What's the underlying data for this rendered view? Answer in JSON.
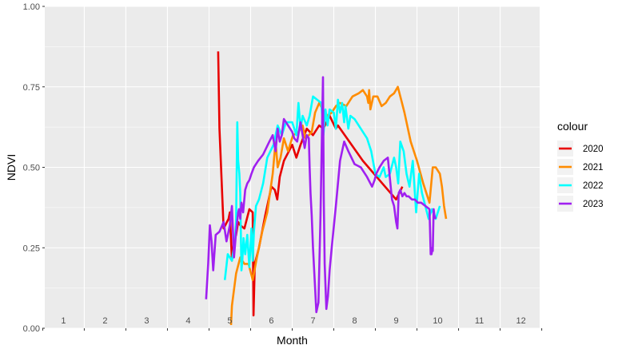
{
  "chart_data": {
    "type": "line",
    "title": "",
    "xlabel": "Month",
    "ylabel": "NDVI",
    "xlim": [
      0.55,
      12.45
    ],
    "ylim": [
      0,
      1
    ],
    "x_tick_labels": [
      "1",
      "2",
      "3",
      "4",
      "5",
      "6",
      "7",
      "8",
      "9",
      "10",
      "11",
      "12"
    ],
    "y_ticks": [
      0,
      0.25,
      0.5,
      0.75,
      1
    ],
    "y_tick_labels": [
      "0.00",
      "0.25",
      "0.50",
      "0.75",
      "1.00"
    ],
    "grid": true,
    "legend": {
      "title": "colour",
      "placement": "right"
    },
    "series": [
      {
        "name": "2020",
        "color": "#e80000",
        "x": [
          4.72,
          4.75,
          4.85,
          4.97,
          5.0,
          5.05,
          5.1,
          5.15,
          5.2,
          5.25,
          5.35,
          5.47,
          5.55,
          5.57,
          5.6,
          5.7,
          5.85,
          6.0,
          6.08,
          6.14,
          6.2,
          6.3,
          6.5,
          6.6,
          6.7,
          6.85,
          7.0,
          7.15,
          7.25,
          7.4,
          7.55,
          7.6,
          8.2,
          9.0,
          9.15
        ],
        "y": [
          0.86,
          0.62,
          0.31,
          0.34,
          0.36,
          0.21,
          0.27,
          0.29,
          0.33,
          0.32,
          0.31,
          0.37,
          0.36,
          0.04,
          0.2,
          0.25,
          0.35,
          0.44,
          0.43,
          0.4,
          0.47,
          0.52,
          0.57,
          0.53,
          0.57,
          0.62,
          0.6,
          0.63,
          0.62,
          0.66,
          0.62,
          0.63,
          0.52,
          0.4,
          0.44
        ]
      },
      {
        "name": "2021",
        "color": "#ff8c00",
        "x": [
          5.03,
          5.05,
          5.15,
          5.25,
          5.35,
          5.45,
          5.55,
          5.65,
          5.78,
          5.9,
          6.03,
          6.1,
          6.15,
          6.22,
          6.3,
          6.4,
          6.52,
          6.65,
          6.75,
          6.82,
          6.9,
          6.97,
          7.05,
          7.15,
          7.23,
          7.35,
          7.45,
          7.55,
          7.65,
          7.8,
          7.95,
          8.1,
          8.2,
          8.3,
          8.33,
          8.35,
          8.38,
          8.45,
          8.55,
          8.65,
          8.75,
          8.85,
          8.95,
          9.04,
          9.12,
          9.2,
          9.35,
          9.5,
          9.65,
          9.8,
          9.88,
          9.95,
          10.05,
          10.1,
          10.15,
          10.2
        ],
        "y": [
          0.01,
          0.07,
          0.17,
          0.22,
          0.2,
          0.2,
          0.15,
          0.22,
          0.3,
          0.36,
          0.48,
          0.58,
          0.5,
          0.53,
          0.59,
          0.55,
          0.6,
          0.61,
          0.63,
          0.59,
          0.6,
          0.61,
          0.67,
          0.7,
          0.68,
          0.66,
          0.67,
          0.69,
          0.7,
          0.69,
          0.72,
          0.73,
          0.74,
          0.72,
          0.7,
          0.74,
          0.68,
          0.72,
          0.72,
          0.69,
          0.7,
          0.72,
          0.73,
          0.75,
          0.71,
          0.67,
          0.58,
          0.52,
          0.45,
          0.39,
          0.5,
          0.5,
          0.48,
          0.44,
          0.38,
          0.34
        ]
      },
      {
        "name": "2022",
        "color": "#00ffff",
        "x": [
          4.88,
          4.95,
          5.05,
          5.12,
          5.15,
          5.18,
          5.2,
          5.23,
          5.25,
          5.28,
          5.3,
          5.33,
          5.37,
          5.42,
          5.47,
          5.52,
          5.55,
          5.58,
          5.63,
          5.7,
          5.8,
          5.9,
          6.05,
          6.15,
          6.25,
          6.35,
          6.5,
          6.6,
          6.65,
          6.7,
          6.75,
          6.85,
          6.92,
          7.0,
          7.1,
          7.2,
          7.25,
          7.3,
          7.35,
          7.4,
          7.5,
          7.55,
          7.6,
          7.65,
          7.7,
          7.75,
          7.78,
          7.85,
          7.9,
          8.0,
          8.1,
          8.2,
          8.3,
          8.4,
          8.5,
          8.6,
          8.7,
          8.75,
          8.85,
          8.95,
          9.0,
          9.05,
          9.1,
          9.18,
          9.25,
          9.32,
          9.4,
          9.48,
          9.55,
          9.62,
          9.7,
          9.78,
          9.86,
          9.95,
          10.05
        ],
        "y": [
          0.15,
          0.23,
          0.21,
          0.27,
          0.33,
          0.64,
          0.52,
          0.48,
          0.42,
          0.18,
          0.21,
          0.28,
          0.23,
          0.29,
          0.19,
          0.31,
          0.21,
          0.3,
          0.38,
          0.4,
          0.45,
          0.53,
          0.57,
          0.63,
          0.6,
          0.64,
          0.64,
          0.6,
          0.7,
          0.62,
          0.66,
          0.63,
          0.66,
          0.72,
          0.71,
          0.7,
          0.6,
          0.68,
          0.63,
          0.68,
          0.67,
          0.62,
          0.71,
          0.67,
          0.7,
          0.64,
          0.69,
          0.62,
          0.66,
          0.65,
          0.63,
          0.61,
          0.59,
          0.55,
          0.48,
          0.47,
          0.5,
          0.47,
          0.48,
          0.53,
          0.5,
          0.45,
          0.58,
          0.55,
          0.48,
          0.44,
          0.52,
          0.36,
          0.48,
          0.42,
          0.38,
          0.34,
          0.37,
          0.34,
          0.38
        ]
      },
      {
        "name": "2023",
        "color": "#a020f0",
        "x": [
          4.43,
          4.48,
          4.52,
          4.56,
          4.6,
          4.66,
          4.75,
          4.85,
          4.92,
          5.0,
          5.05,
          5.1,
          5.15,
          5.2,
          5.22,
          5.25,
          5.28,
          5.32,
          5.37,
          5.42,
          5.47,
          5.52,
          5.58,
          5.68,
          5.8,
          5.95,
          6.03,
          6.1,
          6.15,
          6.2,
          6.25,
          6.3,
          6.4,
          6.5,
          6.55,
          6.62,
          6.7,
          6.75,
          6.8,
          6.85,
          6.9,
          6.92,
          6.94,
          6.97,
          7.0,
          7.04,
          7.08,
          7.13,
          7.18,
          7.22,
          7.24,
          7.26,
          7.28,
          7.32,
          7.36,
          7.4,
          7.45,
          7.55,
          7.65,
          7.75,
          7.85,
          8.0,
          8.15,
          8.3,
          8.42,
          8.48,
          8.52,
          8.6,
          8.7,
          8.8,
          8.9,
          8.95,
          9.0,
          9.03,
          9.06,
          9.1,
          9.15,
          9.2,
          9.25,
          9.3,
          9.38,
          9.45,
          9.52,
          9.6,
          9.7,
          9.8,
          9.83,
          9.85,
          9.87,
          9.88,
          9.9,
          9.92,
          9.95
        ],
        "y": [
          0.09,
          0.2,
          0.32,
          0.27,
          0.18,
          0.29,
          0.3,
          0.33,
          0.27,
          0.32,
          0.38,
          0.22,
          0.3,
          0.36,
          0.37,
          0.34,
          0.39,
          0.36,
          0.43,
          0.45,
          0.46,
          0.48,
          0.5,
          0.52,
          0.54,
          0.58,
          0.6,
          0.55,
          0.62,
          0.58,
          0.6,
          0.65,
          0.63,
          0.61,
          0.59,
          0.58,
          0.64,
          0.6,
          0.56,
          0.6,
          0.59,
          0.5,
          0.42,
          0.35,
          0.25,
          0.15,
          0.05,
          0.08,
          0.35,
          0.65,
          0.78,
          0.4,
          0.2,
          0.06,
          0.1,
          0.18,
          0.25,
          0.38,
          0.52,
          0.58,
          0.55,
          0.51,
          0.5,
          0.47,
          0.44,
          0.46,
          0.48,
          0.5,
          0.52,
          0.53,
          0.4,
          0.38,
          0.33,
          0.31,
          0.42,
          0.43,
          0.41,
          0.42,
          0.41,
          0.41,
          0.4,
          0.4,
          0.39,
          0.39,
          0.38,
          0.37,
          0.23,
          0.23,
          0.25,
          0.24,
          0.37,
          0.35,
          0.34
        ]
      }
    ]
  }
}
